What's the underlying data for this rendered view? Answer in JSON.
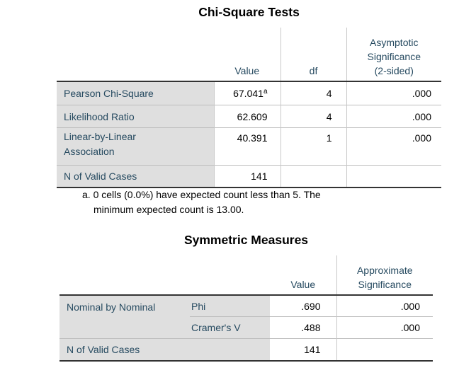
{
  "chi_square_tests": {
    "title": "Chi-Square Tests",
    "columns": {
      "value": "Value",
      "df": "df",
      "asymp_sig_line1": "Asymptotic",
      "asymp_sig_line2": "Significance",
      "asymp_sig_line3": "(2-sided)"
    },
    "rows": [
      {
        "label": "Pearson Chi-Square",
        "value": "67.041",
        "footnote_mark": "a",
        "df": "4",
        "sig": ".000"
      },
      {
        "label": "Likelihood Ratio",
        "value": "62.609",
        "df": "4",
        "sig": ".000"
      },
      {
        "label_line1": "Linear-by-Linear",
        "label_line2": "Association",
        "value": "40.391",
        "df": "1",
        "sig": ".000"
      },
      {
        "label": "N of Valid Cases",
        "value": "141",
        "df": "",
        "sig": ""
      }
    ],
    "footnote": {
      "line1": "a. 0 cells (0.0%) have expected count less than 5. The",
      "line2": "minimum expected count is 13.00."
    }
  },
  "symmetric_measures": {
    "title": "Symmetric Measures",
    "columns": {
      "value": "Value",
      "approx_sig_line1": "Approximate",
      "approx_sig_line2": "Significance"
    },
    "group_label": "Nominal by Nominal",
    "rows": [
      {
        "label": "Phi",
        "value": ".690",
        "sig": ".000"
      },
      {
        "label": "Cramer's V",
        "value": ".488",
        "sig": ".000"
      },
      {
        "label": "N of Valid Cases",
        "value": "141",
        "sig": ""
      }
    ]
  },
  "colors": {
    "label_text": "#264a60",
    "row_header_bg": "#dfdfdf",
    "value_text": "#000000"
  }
}
